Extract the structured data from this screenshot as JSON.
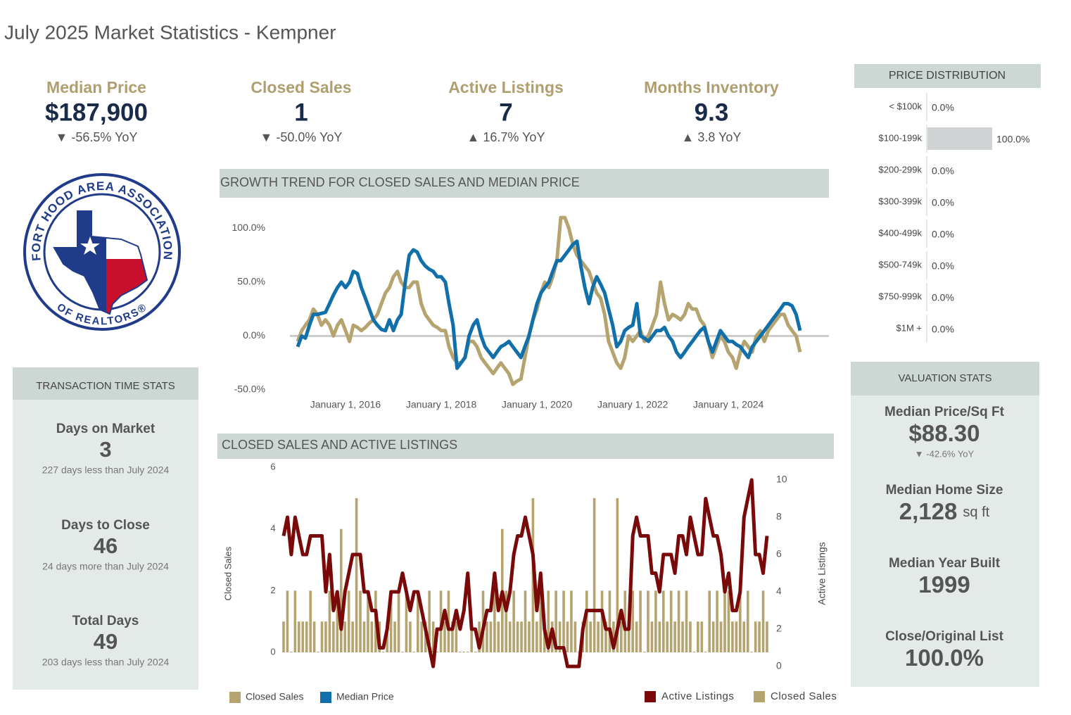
{
  "title": "July 2025 Market Statistics - Kempner",
  "kpis": [
    {
      "label": "Median Price",
      "value": "$187,900",
      "change": "▼ -56.5% YoY"
    },
    {
      "label": "Closed Sales",
      "value": "1",
      "change": "▼ -50.0% YoY"
    },
    {
      "label": "Active Listings",
      "value": "7",
      "change": "▲ 16.7% YoY"
    },
    {
      "label": "Months Inventory",
      "value": "9.3",
      "change": "▲ 3.8 YoY"
    }
  ],
  "logo": {
    "top": "FORT HOOD AREA ASSOCIATION",
    "bottom": "OF REALTORS®"
  },
  "transaction_stats": {
    "title": "TRANSACTION TIME STATS",
    "items": [
      {
        "label": "Days on Market",
        "value": "3",
        "note": "227 days less than July 2024"
      },
      {
        "label": "Days to Close",
        "value": "46",
        "note": "24 days more than July 2024"
      },
      {
        "label": "Total Days",
        "value": "49",
        "note": "203 days less than July 2024"
      }
    ]
  },
  "valuation_stats": {
    "title": "VALUATION STATS",
    "items": [
      {
        "label": "Median Price/Sq Ft",
        "value": "$88.30",
        "note": "▼ -42.6% YoY"
      },
      {
        "label": "Median Home Size",
        "value": "2,128",
        "unit": "sq ft"
      },
      {
        "label": "Median Year Built",
        "value": "1999"
      },
      {
        "label": "Close/Original List",
        "value": "100.0%"
      }
    ]
  },
  "chart_data": [
    {
      "type": "line",
      "title": "GROWTH TREND FOR CLOSED SALES AND MEDIAN PRICE",
      "x": [
        "2015-01-01",
        "2015-02-01",
        "2015-03-01",
        "2015-04-01",
        "2015-05-01",
        "2015-06-01",
        "2015-07-01",
        "2015-08-01",
        "2015-09-01",
        "2015-10-01",
        "2015-11-01",
        "2015-12-01",
        "2016-01-01",
        "2016-02-01",
        "2016-03-01",
        "2016-04-01",
        "2016-05-01",
        "2016-06-01",
        "2016-07-01",
        "2016-08-01",
        "2016-09-01",
        "2016-10-01",
        "2016-11-01",
        "2016-12-01",
        "2017-01-01",
        "2017-02-01",
        "2017-03-01",
        "2017-04-01",
        "2017-05-01",
        "2017-06-01",
        "2017-07-01",
        "2017-08-01",
        "2017-09-01",
        "2017-10-01",
        "2017-11-01",
        "2017-12-01",
        "2018-01-01",
        "2018-02-01",
        "2018-03-01",
        "2018-04-01",
        "2018-05-01",
        "2018-06-01",
        "2018-07-01",
        "2018-08-01",
        "2018-09-01",
        "2018-10-01",
        "2018-11-01",
        "2018-12-01",
        "2019-01-01",
        "2019-02-01",
        "2019-03-01",
        "2019-04-01",
        "2019-05-01",
        "2019-06-01",
        "2019-07-01",
        "2019-08-01",
        "2019-09-01",
        "2019-10-01",
        "2019-11-01",
        "2019-12-01",
        "2020-01-01",
        "2020-02-01",
        "2020-03-01",
        "2020-04-01",
        "2020-05-01",
        "2020-06-01",
        "2020-07-01",
        "2020-08-01",
        "2020-09-01",
        "2020-10-01",
        "2020-11-01",
        "2020-12-01",
        "2021-01-01",
        "2021-02-01",
        "2021-03-01",
        "2021-04-01",
        "2021-05-01",
        "2021-06-01",
        "2021-07-01",
        "2021-08-01",
        "2021-09-01",
        "2021-10-01",
        "2021-11-01",
        "2021-12-01",
        "2022-01-01",
        "2022-02-01",
        "2022-03-01",
        "2022-04-01",
        "2022-05-01",
        "2022-06-01",
        "2022-07-01",
        "2022-08-01",
        "2022-09-01",
        "2022-10-01",
        "2022-11-01",
        "2022-12-01",
        "2023-01-01",
        "2023-02-01",
        "2023-03-01",
        "2023-04-01",
        "2023-05-01",
        "2023-06-01",
        "2023-07-01",
        "2023-08-01",
        "2023-09-01",
        "2023-10-01",
        "2023-11-01",
        "2023-12-01",
        "2024-01-01",
        "2024-02-01",
        "2024-03-01",
        "2024-04-01",
        "2024-05-01",
        "2024-06-01",
        "2024-07-01",
        "2024-08-01",
        "2024-09-01",
        "2024-10-01",
        "2024-11-01",
        "2024-12-01",
        "2025-01-01",
        "2025-02-01",
        "2025-03-01",
        "2025-04-01",
        "2025-05-01",
        "2025-06-01",
        "2025-07-01"
      ],
      "xlim": [
        "2015-01-01",
        "2025-07-01"
      ],
      "xticks": [
        {
          "value": "2016-01-01",
          "label": "January 1, 2016"
        },
        {
          "value": "2018-01-01",
          "label": "January 1, 2018"
        },
        {
          "value": "2020-01-01",
          "label": "January 1, 2020"
        },
        {
          "value": "2022-01-01",
          "label": "January 1, 2022"
        },
        {
          "value": "2024-01-01",
          "label": "January 1, 2024"
        }
      ],
      "ylim": [
        -54,
        116
      ],
      "yticks": [
        {
          "value": -50,
          "label": "-50.0%"
        },
        {
          "value": 0,
          "label": "0.0%"
        },
        {
          "value": 50,
          "label": "50.0%"
        },
        {
          "value": 100,
          "label": "100.0%"
        }
      ],
      "zero_line": true,
      "series": [
        {
          "name": "Closed Sales",
          "color": "#b5a46f",
          "values": [
            -5,
            5,
            10,
            15,
            25,
            20,
            10,
            15,
            10,
            0,
            10,
            15,
            5,
            -5,
            10,
            8,
            5,
            8,
            12,
            15,
            20,
            30,
            40,
            45,
            55,
            60,
            50,
            45,
            45,
            50,
            50,
            30,
            20,
            15,
            10,
            8,
            5,
            5,
            -10,
            -20,
            -25,
            -25,
            -20,
            -5,
            -5,
            -10,
            -20,
            -25,
            -30,
            -35,
            -30,
            -25,
            -30,
            -35,
            -45,
            -42,
            -40,
            -20,
            0,
            15,
            25,
            40,
            50,
            45,
            55,
            70,
            110,
            110,
            100,
            85,
            75,
            70,
            65,
            60,
            50,
            40,
            35,
            20,
            -5,
            -15,
            -25,
            -30,
            -20,
            0,
            -5,
            0,
            5,
            -5,
            0,
            10,
            20,
            50,
            30,
            15,
            20,
            18,
            15,
            20,
            30,
            25,
            25,
            15,
            10,
            -5,
            -20,
            -10,
            0,
            -5,
            -15,
            -20,
            -30,
            -15,
            -5,
            -10,
            -15,
            0,
            5,
            -5,
            5,
            10,
            15,
            20,
            20,
            10,
            5,
            0,
            -15
          ]
        },
        {
          "name": "Median Price",
          "color": "#1170aa",
          "values": [
            -10,
            0,
            -2,
            10,
            20,
            20,
            21,
            22,
            30,
            38,
            45,
            50,
            45,
            50,
            60,
            58,
            45,
            35,
            25,
            15,
            10,
            6,
            5,
            15,
            5,
            15,
            20,
            50,
            75,
            80,
            78,
            70,
            65,
            62,
            60,
            55,
            55,
            50,
            30,
            10,
            -30,
            -25,
            -20,
            0,
            10,
            15,
            0,
            -10,
            -15,
            -20,
            -15,
            -10,
            -8,
            -5,
            -10,
            -15,
            -20,
            -10,
            0,
            15,
            30,
            40,
            45,
            50,
            60,
            70,
            70,
            75,
            80,
            85,
            88,
            65,
            45,
            30,
            45,
            55,
            48,
            40,
            25,
            10,
            -10,
            -5,
            5,
            8,
            10,
            30,
            0,
            -2,
            -5,
            0,
            5,
            5,
            8,
            0,
            -5,
            -15,
            -20,
            -15,
            -10,
            -5,
            0,
            5,
            8,
            -5,
            -15,
            -5,
            5,
            0,
            -5,
            -5,
            -8,
            -10,
            -15,
            -20,
            -10,
            -5,
            0,
            5,
            10,
            15,
            20,
            25,
            30,
            30,
            28,
            20,
            5
          ]
        }
      ]
    },
    {
      "type": "bar_line",
      "title": "CLOSED SALES AND ACTIVE LISTINGS",
      "ylabel": "Closed Sales",
      "y2label": "Active Listings",
      "ylim": [
        0,
        6
      ],
      "yticks": [
        0,
        2,
        4,
        6
      ],
      "y2lim": [
        0,
        10
      ],
      "y2ticks": [
        0,
        2,
        4,
        6,
        8,
        10
      ],
      "series": [
        {
          "name": "Active Listings",
          "type": "line",
          "axis": "y2",
          "color": "#7a0a0a",
          "values": [
            7,
            8,
            6,
            8,
            7,
            6,
            6,
            7,
            7,
            7,
            7,
            4,
            6,
            3,
            4,
            2,
            4,
            5,
            6,
            6,
            6,
            4,
            4,
            3,
            3,
            1,
            1,
            2,
            4,
            4,
            4,
            5,
            4,
            3,
            4,
            4,
            3,
            2,
            1,
            0,
            2,
            2,
            3,
            2,
            2,
            3,
            2,
            3,
            5,
            2,
            2,
            1,
            2,
            3,
            3,
            5,
            3,
            4,
            3,
            4,
            6,
            7,
            7,
            8,
            7,
            6,
            3,
            5,
            2,
            1,
            2,
            1,
            1,
            1,
            0,
            0,
            0,
            0,
            2,
            3,
            3,
            3,
            3,
            3,
            2,
            2,
            1,
            2,
            3,
            2,
            2,
            7,
            8,
            7,
            7,
            7,
            5,
            5,
            4,
            6,
            6,
            6,
            5,
            7,
            7,
            6,
            8,
            7,
            6,
            6,
            9,
            8,
            7,
            7,
            6,
            4,
            5,
            3,
            3,
            4,
            8,
            9,
            10,
            6,
            6,
            5,
            7
          ]
        },
        {
          "name": "Closed Sales",
          "type": "bar",
          "axis": "y",
          "color": "#b5a46f",
          "values": [
            1,
            2,
            0,
            2,
            1,
            1,
            1,
            2,
            1,
            0,
            1,
            1,
            2,
            1,
            2,
            4,
            1,
            2,
            1,
            5,
            2,
            1,
            2,
            1,
            2,
            1,
            0,
            1,
            2,
            1,
            2,
            0,
            2,
            1,
            0,
            2,
            1,
            1,
            2,
            1,
            0,
            2,
            1,
            2,
            1,
            1,
            0,
            0,
            0,
            1,
            0,
            1,
            2,
            1,
            1,
            2,
            1,
            4,
            2,
            1,
            2,
            1,
            1,
            2,
            1,
            5,
            1,
            2,
            1,
            2,
            1,
            2,
            1,
            2,
            1,
            2,
            1,
            0,
            1,
            2,
            1,
            5,
            1,
            2,
            1,
            2,
            1,
            5,
            1,
            2,
            1,
            2,
            1,
            2,
            0,
            2,
            1,
            2,
            1,
            2,
            1,
            2,
            1,
            2,
            1,
            2,
            1,
            0,
            1,
            1,
            0,
            2,
            1,
            2,
            1,
            2,
            2,
            1,
            1,
            2,
            1,
            2,
            0,
            1,
            1,
            2,
            1
          ]
        }
      ]
    },
    {
      "type": "hbar",
      "title": "PRICE DISTRIBUTION",
      "categories": [
        "< $100k",
        "$100-199k",
        "$200-299k",
        "$300-399k",
        "$400-499k",
        "$500-749k",
        "$750-999k",
        "$1M +"
      ],
      "values": [
        0,
        100,
        0,
        0,
        0,
        0,
        0,
        0
      ],
      "value_labels": [
        "0.0%",
        "100.0%",
        "0.0%",
        "0.0%",
        "0.0%",
        "0.0%",
        "0.0%",
        "0.0%"
      ],
      "xlim": [
        0,
        100
      ],
      "color": "#d0d4d4"
    }
  ]
}
